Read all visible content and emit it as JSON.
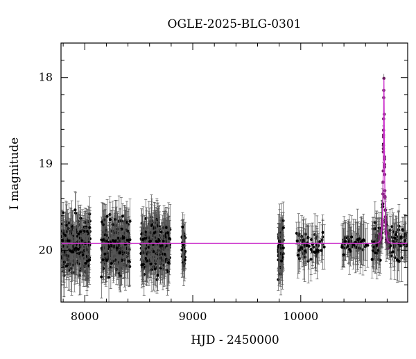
{
  "chart_data": {
    "type": "scatter",
    "title": "OGLE-2025-BLG-0301",
    "xlabel": "HJD - 2450000",
    "ylabel": "I magnitude",
    "xlim": [
      7780,
      10990
    ],
    "ylim": [
      20.6,
      17.6
    ],
    "y_inverted": true,
    "x_ticks": [
      8000,
      9000,
      10000
    ],
    "x_tick_labels": [
      "8000",
      "9000",
      "10000"
    ],
    "y_ticks": [
      18,
      19,
      20
    ],
    "y_tick_labels": [
      "18",
      "19",
      "20"
    ],
    "grid": false,
    "legend": "none",
    "colors": {
      "points": "#000000",
      "errorbars": "#555555",
      "model": "#cc33cc",
      "peak_points": "#6a2060"
    },
    "observing_seasons": [
      {
        "x_range": [
          7790,
          8050
        ],
        "mag_center": 19.95,
        "mag_spread": 0.28,
        "count": 260
      },
      {
        "x_range": [
          8150,
          8420
        ],
        "mag_center": 19.95,
        "mag_spread": 0.28,
        "count": 260
      },
      {
        "x_range": [
          8520,
          8790
        ],
        "mag_center": 19.95,
        "mag_spread": 0.28,
        "count": 280
      },
      {
        "x_range": [
          8900,
          8930
        ],
        "mag_center": 19.95,
        "mag_spread": 0.22,
        "count": 30
      },
      {
        "x_range": [
          9790,
          9840
        ],
        "mag_center": 19.95,
        "mag_spread": 0.3,
        "count": 80
      },
      {
        "x_range": [
          9960,
          10220
        ],
        "mag_center": 19.95,
        "mag_spread": 0.15,
        "count": 60
      },
      {
        "x_range": [
          10380,
          10620
        ],
        "mag_center": 19.92,
        "mag_spread": 0.12,
        "count": 60
      },
      {
        "x_range": [
          10660,
          10980
        ],
        "mag_center": 20.05,
        "mag_spread": 0.2,
        "count": 120
      }
    ],
    "model": {
      "name": "",
      "baseline_mag": 19.92,
      "peak_time": 10770,
      "peak_mag": 18.02,
      "einstein_time": 14
    }
  }
}
